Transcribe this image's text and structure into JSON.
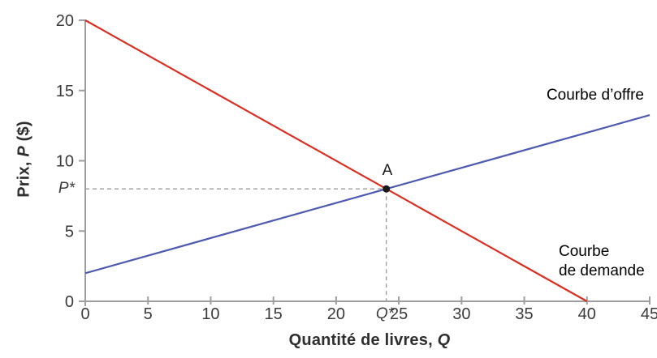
{
  "colors": {
    "supply": "#4d5ab0",
    "demand": "#d93023",
    "axis": "#9e9e9e",
    "dashed": "#9b9b9b",
    "tick_text": "#3b3b3b",
    "title_text": "#2e2e2e",
    "point": "#1a1a1a",
    "background": "#ffffff"
  },
  "labels": {
    "y_title_prefix": "Prix, ",
    "y_title_var": "P",
    "y_title_suffix": " ($)",
    "x_title_prefix": "Quantité de livres, ",
    "x_title_var": "Q",
    "supply_curve": "Courbe d’offre",
    "demand_curve_line1": "Courbe",
    "demand_curve_line2": "de demande",
    "equilibrium_point": "A",
    "p_star": "P*",
    "q_star": "Q*"
  },
  "chart_data": {
    "type": "line",
    "title": "",
    "xlabel": "Quantité de livres, Q",
    "ylabel": "Prix, P ($)",
    "xlim": [
      0,
      45
    ],
    "ylim": [
      0,
      20
    ],
    "x_ticks": [
      0,
      5,
      10,
      15,
      20,
      25,
      30,
      35,
      40,
      45
    ],
    "y_ticks": [
      0,
      5,
      10,
      15,
      20
    ],
    "grid": false,
    "legend_position": "inline-annotations",
    "series": [
      {
        "name": "Courbe d’offre",
        "color": "#4d5ab0",
        "x": [
          0,
          45
        ],
        "y": [
          2,
          13.25
        ]
      },
      {
        "name": "Courbe de demande",
        "color": "#d93023",
        "x": [
          0,
          40
        ],
        "y": [
          20,
          0
        ]
      }
    ],
    "equilibrium": {
      "label": "A",
      "q": 24,
      "p": 8,
      "p_axis_label": "P*",
      "q_axis_label": "Q*"
    }
  }
}
